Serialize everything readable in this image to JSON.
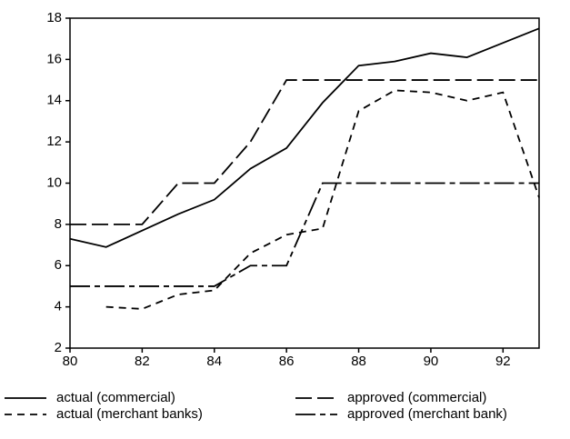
{
  "chart_data": {
    "type": "line",
    "x": [
      80,
      81,
      82,
      83,
      84,
      85,
      86,
      87,
      88,
      89,
      90,
      91,
      92,
      93
    ],
    "series": [
      {
        "name": "actual (commercial)",
        "color": "#000000",
        "line_style": "solid",
        "values": [
          7.3,
          6.9,
          7.7,
          8.5,
          9.2,
          10.7,
          11.7,
          13.9,
          15.7,
          15.9,
          16.3,
          16.1,
          16.8,
          17.5
        ]
      },
      {
        "name": "approved (commercial)",
        "color": "#000000",
        "line_style": "long-dash",
        "values": [
          8,
          8,
          8,
          10,
          10,
          12,
          15,
          15,
          15,
          15,
          15,
          15,
          15,
          15
        ]
      },
      {
        "name": "actual (merchant banks)",
        "color": "#000000",
        "line_style": "short-dash",
        "values": [
          null,
          4.0,
          3.9,
          4.6,
          4.8,
          6.6,
          7.5,
          7.8,
          13.5,
          14.5,
          14.4,
          14.0,
          14.4,
          9.3
        ]
      },
      {
        "name": "approved (merchant bank)",
        "color": "#000000",
        "line_style": "long-short-dash",
        "values": [
          5,
          5,
          5,
          5,
          5,
          6,
          6,
          10,
          10,
          10,
          10,
          10,
          10,
          10
        ]
      }
    ],
    "xlim": [
      80,
      93
    ],
    "xticks": [
      80,
      82,
      84,
      86,
      88,
      90,
      92
    ],
    "ylim": [
      2,
      18
    ],
    "yticks": [
      2,
      4,
      6,
      8,
      10,
      12,
      14,
      16,
      18
    ],
    "grid": false
  }
}
